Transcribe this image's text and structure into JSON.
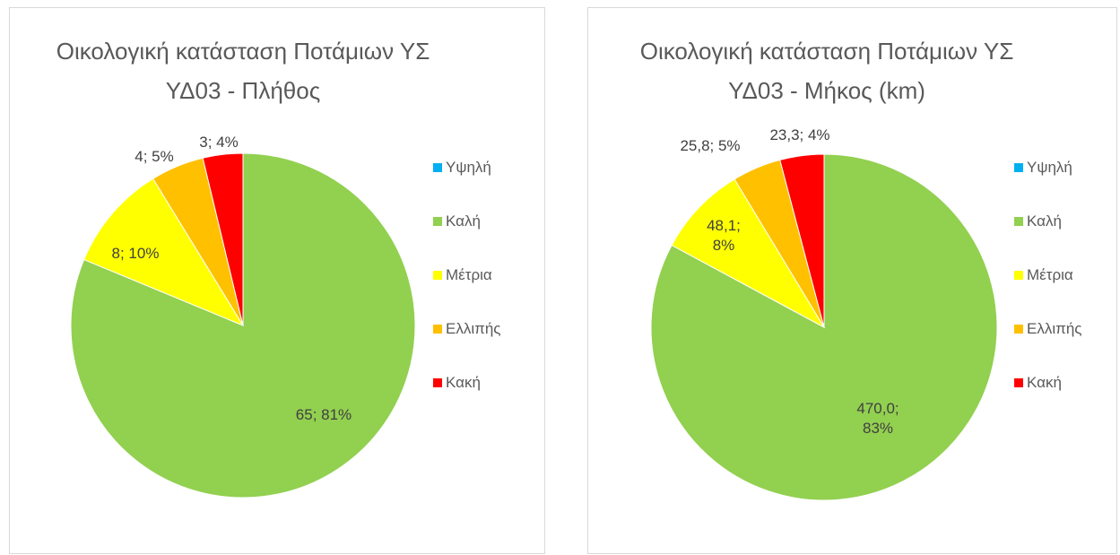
{
  "chart_data": [
    {
      "type": "pie",
      "title": "Οικολογική κατάσταση Ποτάμιων ΥΣ ΥΔ03 - Πλήθος",
      "categories": [
        "Υψηλή",
        "Καλή",
        "Μέτρια",
        "Ελλιπής",
        "Κακή"
      ],
      "values": [
        0,
        65,
        8,
        4,
        3
      ],
      "value_labels": [
        null,
        "65; 81%",
        "8; 10%",
        "4; 5%",
        "3; 4%"
      ],
      "colors": [
        "#00b0f0",
        "#92d050",
        "#ffff00",
        "#ffc000",
        "#ff0000"
      ],
      "legend": "right"
    },
    {
      "type": "pie",
      "title": "Οικολογική κατάσταση Ποτάμιων ΥΣ ΥΔ03 - Μήκος (km)",
      "categories": [
        "Υψηλή",
        "Καλή",
        "Μέτρια",
        "Ελλιπής",
        "Κακή"
      ],
      "values": [
        0,
        470.0,
        48.1,
        25.8,
        23.3
      ],
      "value_labels": [
        null,
        "470,0; 83%",
        "48,1; 8%",
        "25,8; 5%",
        "23,3; 4%"
      ],
      "colors": [
        "#00b0f0",
        "#92d050",
        "#ffff00",
        "#ffc000",
        "#ff0000"
      ],
      "legend": "right"
    }
  ]
}
